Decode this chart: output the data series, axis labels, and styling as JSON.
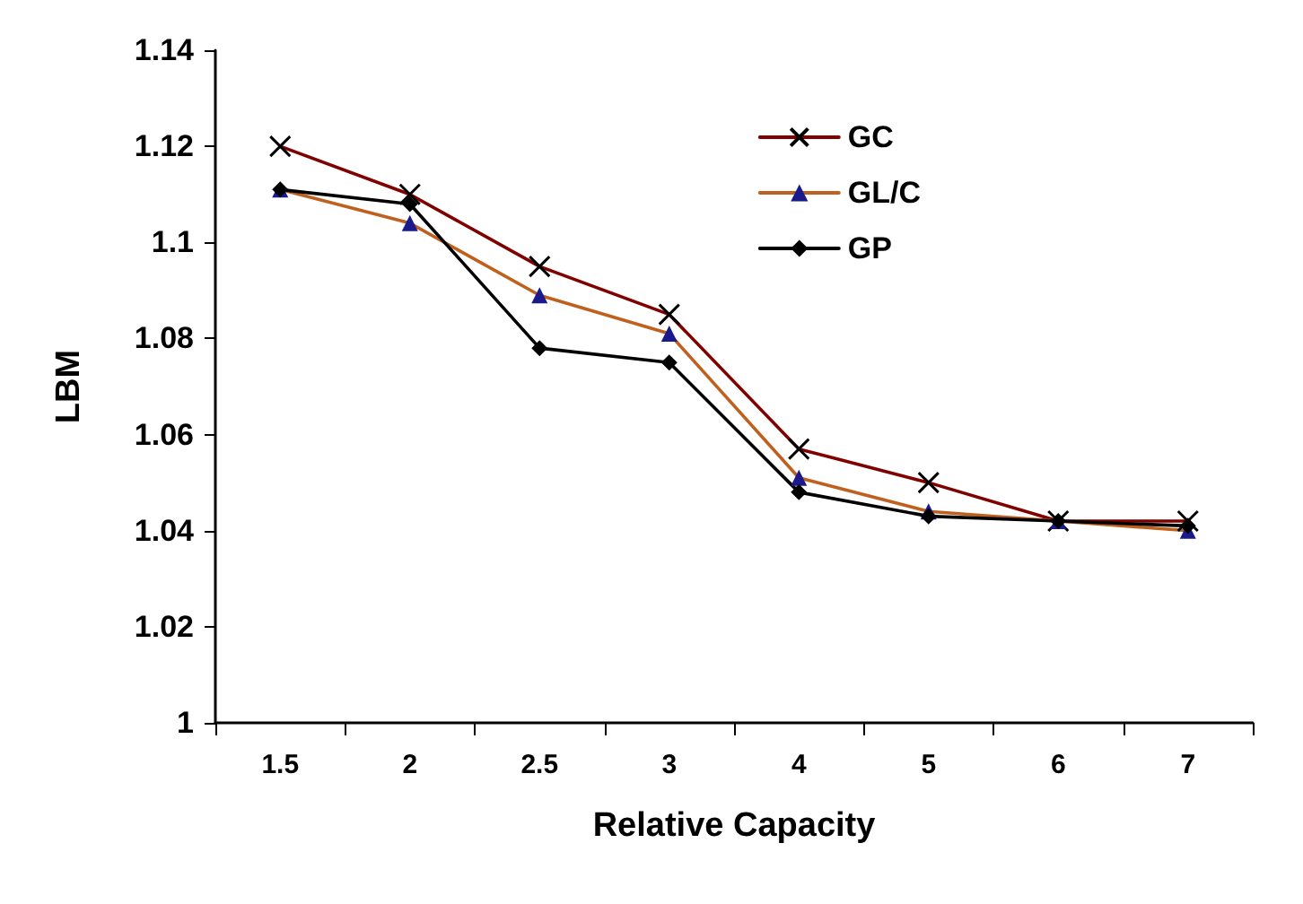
{
  "chart_data": {
    "type": "line",
    "xlabel": "Relative Capacity",
    "ylabel": "LBM",
    "categories": [
      "1.5",
      "2",
      "2.5",
      "3",
      "4",
      "5",
      "6",
      "7"
    ],
    "series": [
      {
        "name": "GC",
        "color": "#800000",
        "marker": "cross",
        "values": [
          1.12,
          1.11,
          1.095,
          1.085,
          1.057,
          1.05,
          1.042,
          1.042
        ]
      },
      {
        "name": "GL/C",
        "color": "#c0601e",
        "marker": "triangle",
        "values": [
          1.111,
          1.104,
          1.089,
          1.081,
          1.051,
          1.044,
          1.042,
          1.04
        ]
      },
      {
        "name": "GP",
        "color": "#000000",
        "marker": "diamond",
        "values": [
          1.111,
          1.108,
          1.078,
          1.075,
          1.048,
          1.043,
          1.042,
          1.041
        ]
      }
    ],
    "ylim": [
      1,
      1.14
    ],
    "yticks": [
      1,
      1.02,
      1.04,
      1.06,
      1.08,
      1.1,
      1.12,
      1.14
    ],
    "grid": false,
    "legend": "top right",
    "line_style": "solid"
  }
}
